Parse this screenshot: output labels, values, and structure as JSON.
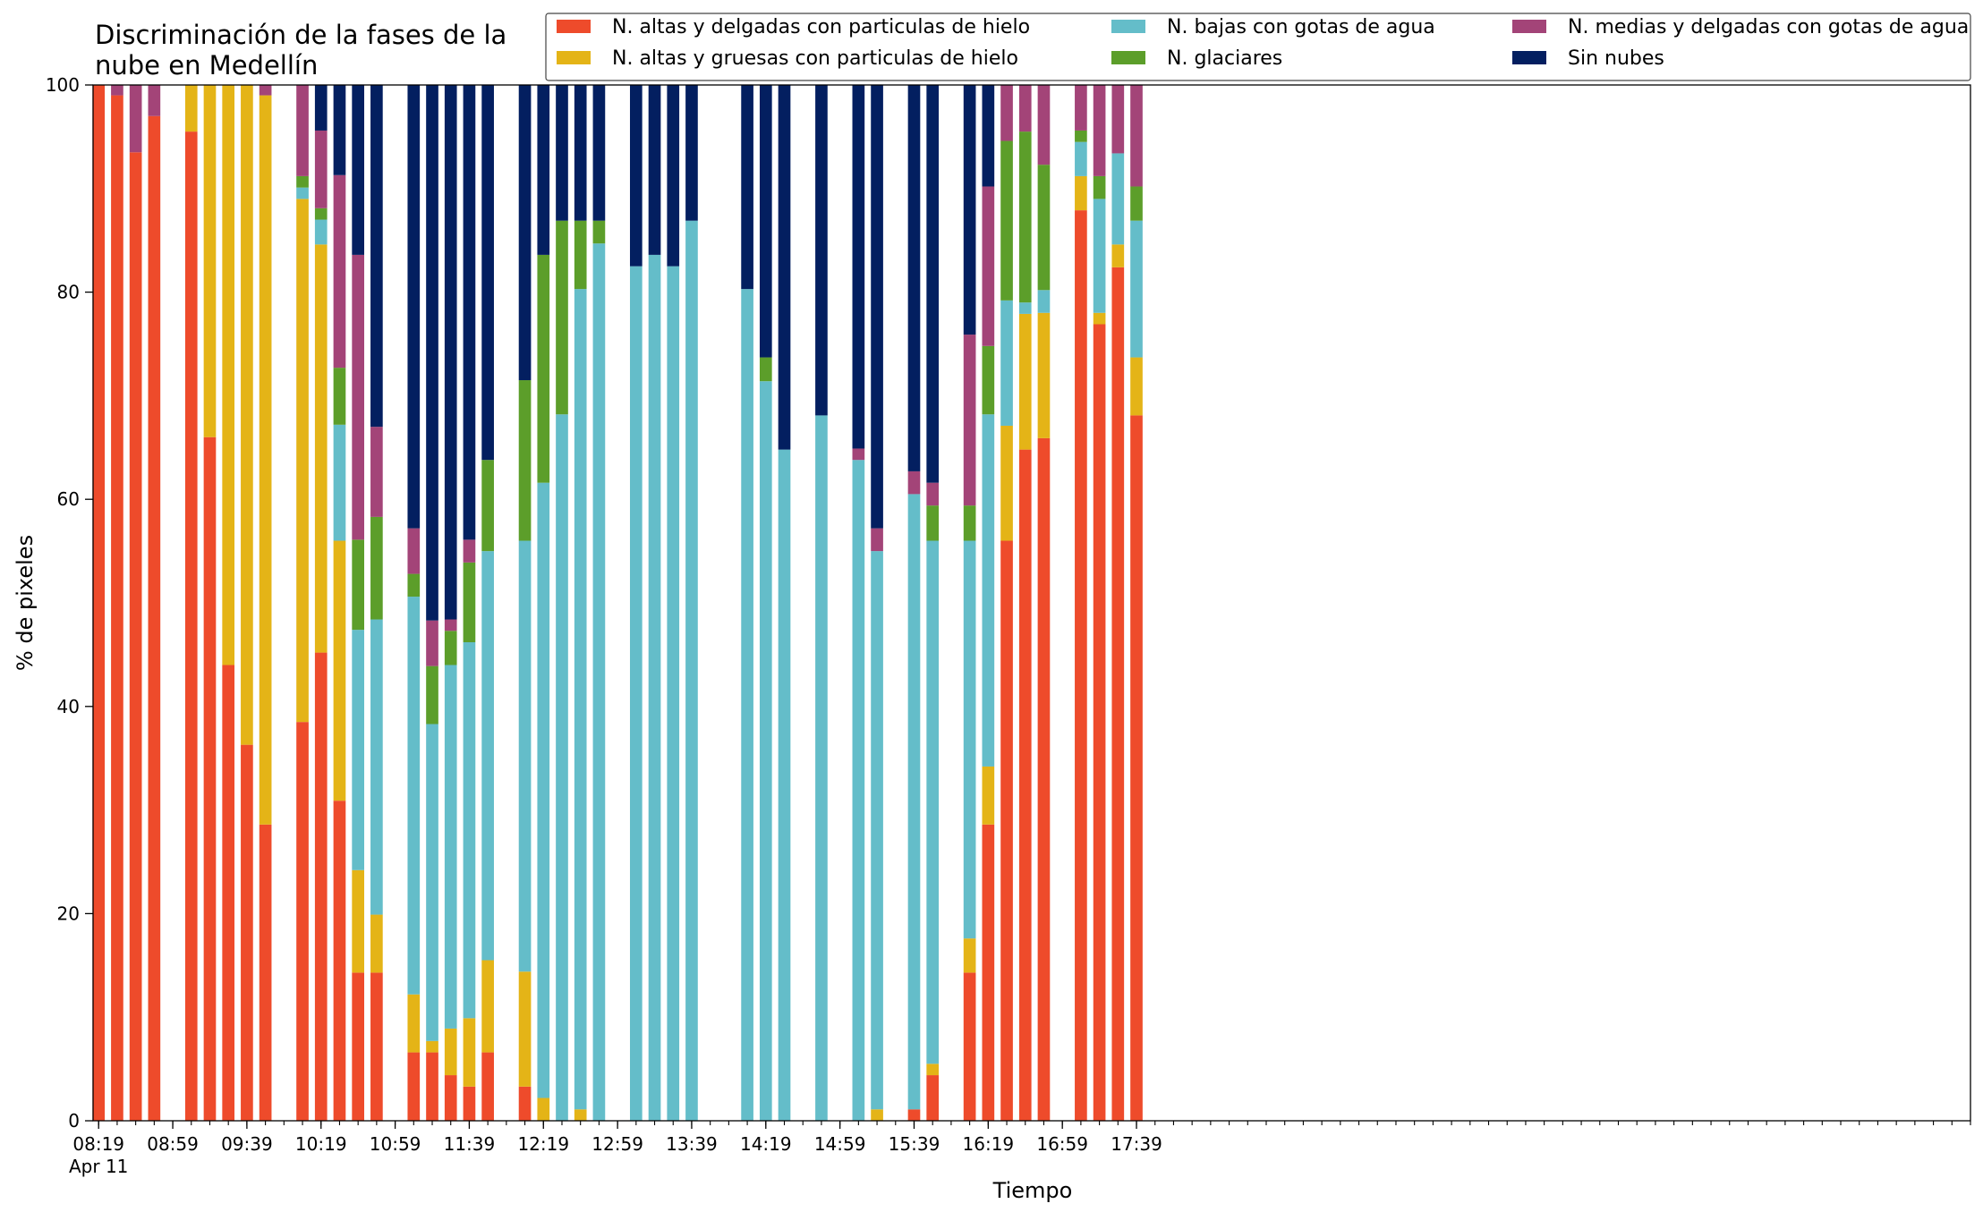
{
  "chart_data": {
    "type": "bar",
    "stacked": true,
    "title": "Discriminación de la fases de la nube en Medellín",
    "title_lines": [
      "Discriminación de la fases de la",
      "nube en Medellín"
    ],
    "xlabel": "Tiempo",
    "ylabel": "% de pixeles",
    "ylim": [
      0,
      100
    ],
    "yticks": [
      "0",
      "20",
      "40",
      "60",
      "80",
      "100"
    ],
    "xlim_minutes": [
      -3,
      1010
    ],
    "xtick_labels": [
      {
        "minute": 0,
        "label": "08:19",
        "sub": "Apr 11"
      },
      {
        "minute": 40,
        "label": "08:59"
      },
      {
        "minute": 80,
        "label": "09:39"
      },
      {
        "minute": 120,
        "label": "10:19"
      },
      {
        "minute": 160,
        "label": "10:59"
      },
      {
        "minute": 200,
        "label": "11:39"
      },
      {
        "minute": 240,
        "label": "12:19"
      },
      {
        "minute": 280,
        "label": "12:59"
      },
      {
        "minute": 320,
        "label": "13:39"
      },
      {
        "minute": 360,
        "label": "14:19"
      },
      {
        "minute": 400,
        "label": "14:59"
      },
      {
        "minute": 440,
        "label": "15:39"
      },
      {
        "minute": 480,
        "label": "16:19"
      },
      {
        "minute": 520,
        "label": "16:59"
      },
      {
        "minute": 560,
        "label": "17:39"
      }
    ],
    "minor_tick_step_minutes": 10,
    "grid": false,
    "legend_position": "top",
    "series": [
      {
        "name": "N. altas y delgadas con particulas de hielo",
        "color": "#EE4B2B"
      },
      {
        "name": "N. altas y gruesas con particulas de hielo",
        "color": "#E4B417"
      },
      {
        "name": "N. bajas con gotas de agua",
        "color": "#64BDC9"
      },
      {
        "name": "N. glaciares",
        "color": "#5C9E2A"
      },
      {
        "name": "N. medias y delgadas con gotas de agua",
        "color": "#A34478"
      },
      {
        "name": "Sin nubes",
        "color": "#031F60"
      }
    ],
    "bars": [
      {
        "time": "08:19",
        "values": [
          100,
          0,
          0,
          0,
          0,
          0
        ]
      },
      {
        "time": "08:29",
        "values": [
          99,
          0,
          0,
          0,
          1,
          0
        ]
      },
      {
        "time": "08:39",
        "values": [
          93.5,
          0,
          0,
          0,
          6.5,
          0
        ]
      },
      {
        "time": "08:49",
        "values": [
          97,
          0,
          0,
          0,
          3,
          0
        ]
      },
      {
        "time": "09:09",
        "values": [
          95.5,
          4.5,
          0,
          0,
          0,
          0
        ]
      },
      {
        "time": "09:19",
        "values": [
          66,
          34,
          0,
          0,
          0,
          0
        ]
      },
      {
        "time": "09:29",
        "values": [
          44,
          56,
          0,
          0,
          0,
          0
        ]
      },
      {
        "time": "09:39",
        "values": [
          36.3,
          63.7,
          0,
          0,
          0,
          0
        ]
      },
      {
        "time": "09:49",
        "values": [
          28.6,
          70.4,
          0,
          0,
          1,
          0
        ]
      },
      {
        "time": "10:09",
        "values": [
          38.5,
          50.5,
          1.1,
          1.1,
          8.8,
          0
        ]
      },
      {
        "time": "10:19",
        "values": [
          45.2,
          39.4,
          2.4,
          1.1,
          7.5,
          4.4
        ]
      },
      {
        "time": "10:29",
        "values": [
          30.9,
          25.1,
          11.2,
          5.5,
          18.6,
          8.7
        ]
      },
      {
        "time": "10:39",
        "values": [
          14.3,
          9.9,
          23.2,
          8.7,
          27.5,
          16.4
        ]
      },
      {
        "time": "10:49",
        "values": [
          14.3,
          5.6,
          28.5,
          9.9,
          8.7,
          33
        ]
      },
      {
        "time": "11:09",
        "values": [
          6.6,
          5.6,
          38.4,
          2.2,
          4.4,
          42.8
        ]
      },
      {
        "time": "11:19",
        "values": [
          6.6,
          1.1,
          30.6,
          5.6,
          4.4,
          51.7
        ]
      },
      {
        "time": "11:29",
        "values": [
          4.4,
          4.5,
          35.1,
          3.3,
          1.1,
          51.6
        ]
      },
      {
        "time": "11:39",
        "values": [
          3.3,
          6.6,
          36.3,
          7.7,
          2.2,
          43.9
        ]
      },
      {
        "time": "11:49",
        "values": [
          6.6,
          8.9,
          39.5,
          8.8,
          0,
          36.2
        ]
      },
      {
        "time": "12:09",
        "values": [
          3.3,
          11.1,
          41.6,
          15.5,
          0,
          28.5
        ]
      },
      {
        "time": "12:19",
        "values": [
          0,
          2.2,
          59.4,
          22,
          0,
          16.4
        ]
      },
      {
        "time": "12:29",
        "values": [
          0,
          0,
          68.2,
          18.7,
          0,
          13.1
        ]
      },
      {
        "time": "12:39",
        "values": [
          0,
          1.1,
          79.2,
          6.6,
          0,
          13.1
        ]
      },
      {
        "time": "12:49",
        "values": [
          0,
          0,
          84.7,
          2.2,
          0,
          13.1
        ]
      },
      {
        "time": "13:09",
        "values": [
          0,
          0,
          82.5,
          0,
          0,
          17.5
        ]
      },
      {
        "time": "13:19",
        "values": [
          0,
          0,
          83.6,
          0,
          0,
          16.4
        ]
      },
      {
        "time": "13:29",
        "values": [
          0,
          0,
          82.5,
          0,
          0,
          17.5
        ]
      },
      {
        "time": "13:39",
        "values": [
          0,
          0,
          86.9,
          0,
          0,
          13.1
        ]
      },
      {
        "time": "14:09",
        "values": [
          0,
          0,
          80.3,
          0,
          0,
          19.7
        ]
      },
      {
        "time": "14:19",
        "values": [
          0,
          0,
          71.4,
          2.3,
          0,
          26.3
        ]
      },
      {
        "time": "14:29",
        "values": [
          0,
          0,
          64.8,
          0,
          0,
          35.2
        ]
      },
      {
        "time": "14:49",
        "values": [
          0,
          0,
          68.1,
          0,
          0,
          31.9
        ]
      },
      {
        "time": "15:09",
        "values": [
          0,
          0,
          63.8,
          0,
          1.1,
          35.1
        ]
      },
      {
        "time": "15:19",
        "values": [
          0,
          1.1,
          53.9,
          0,
          2.2,
          42.8
        ]
      },
      {
        "time": "15:39",
        "values": [
          1.1,
          0,
          59.4,
          0,
          2.2,
          37.3
        ]
      },
      {
        "time": "15:49",
        "values": [
          4.4,
          1.1,
          50.5,
          3.4,
          2.2,
          38.4
        ]
      },
      {
        "time": "16:09",
        "values": [
          14.3,
          3.3,
          38.4,
          3.4,
          16.5,
          24.1
        ]
      },
      {
        "time": "16:19",
        "values": [
          28.6,
          5.6,
          34,
          6.6,
          15.4,
          9.8
        ]
      },
      {
        "time": "16:29",
        "values": [
          56,
          11.1,
          12.1,
          15.4,
          5.4,
          0
        ]
      },
      {
        "time": "16:39",
        "values": [
          64.8,
          13.1,
          1.1,
          16.5,
          4.5,
          0
        ]
      },
      {
        "time": "16:49",
        "values": [
          65.9,
          12.1,
          2.2,
          12.1,
          7.7,
          0
        ]
      },
      {
        "time": "17:09",
        "values": [
          87.9,
          3.3,
          3.3,
          1.1,
          4.4,
          0
        ]
      },
      {
        "time": "17:19",
        "values": [
          76.9,
          1.1,
          11,
          2.2,
          8.8,
          0
        ]
      },
      {
        "time": "17:29",
        "values": [
          82.4,
          2.2,
          8.8,
          0,
          6.6,
          0
        ]
      },
      {
        "time": "17:39",
        "values": [
          68.1,
          5.6,
          13.2,
          3.3,
          9.8,
          0
        ]
      }
    ]
  }
}
